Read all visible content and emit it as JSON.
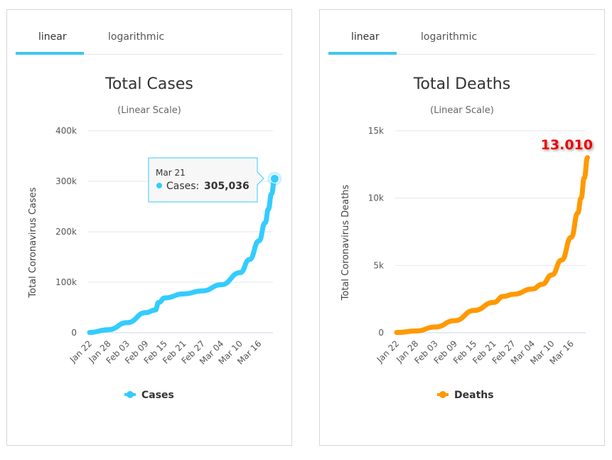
{
  "charts": [
    {
      "tabs": [
        {
          "label": "linear",
          "active": true
        },
        {
          "label": "logarithmic",
          "active": false
        }
      ],
      "chart_data": {
        "type": "line",
        "title": "Total Cases",
        "subtitle": "(Linear Scale)",
        "ylabel": "Total Coronavirus Cases",
        "ylim": [
          0,
          400000
        ],
        "yticks": [
          0,
          100000,
          200000,
          300000,
          400000
        ],
        "ytick_labels": [
          "0",
          "100k",
          "200k",
          "300k",
          "400k"
        ],
        "xticks": [
          "Jan 22",
          "Jan 28",
          "Feb 03",
          "Feb 09",
          "Feb 15",
          "Feb 21",
          "Feb 27",
          "Mar 04",
          "Mar 10",
          "Mar 16"
        ],
        "grid": true,
        "legend": "bottom",
        "color": "#33ccff",
        "series": [
          {
            "name": "Cases",
            "x": [
              "Jan 22",
              "Jan 28",
              "Feb 03",
              "Feb 09",
              "Feb 12",
              "Feb 13",
              "Feb 15",
              "Feb 21",
              "Feb 27",
              "Mar 04",
              "Mar 10",
              "Mar 13",
              "Mar 16",
              "Mar 18",
              "Mar 19",
              "Mar 20",
              "Mar 21"
            ],
            "y": [
              555,
              6000,
              20000,
              40000,
              45000,
              60000,
              69000,
              77000,
              83000,
              95000,
              119000,
              145000,
              182000,
              218000,
              245000,
              275000,
              305036
            ]
          }
        ],
        "tooltip": {
          "date": "Mar 21",
          "series": "Cases",
          "value": "305,036"
        }
      }
    },
    {
      "tabs": [
        {
          "label": "linear",
          "active": true
        },
        {
          "label": "logarithmic",
          "active": false
        }
      ],
      "chart_data": {
        "type": "line",
        "title": "Total Deaths",
        "subtitle": "(Linear Scale)",
        "ylabel": "Total Coronavirus Deaths",
        "ylim": [
          0,
          15000
        ],
        "yticks": [
          0,
          5000,
          10000,
          15000
        ],
        "ytick_labels": [
          "0",
          "5k",
          "10k",
          "15k"
        ],
        "xticks": [
          "Jan 22",
          "Jan 28",
          "Feb 03",
          "Feb 09",
          "Feb 15",
          "Feb 21",
          "Feb 27",
          "Mar 04",
          "Mar 10",
          "Mar 16"
        ],
        "grid": true,
        "legend": "bottom",
        "color": "#ff9900",
        "series": [
          {
            "name": "Deaths",
            "x": [
              "Jan 22",
              "Jan 28",
              "Feb 03",
              "Feb 09",
              "Feb 15",
              "Feb 21",
              "Feb 24",
              "Feb 27",
              "Mar 04",
              "Mar 07",
              "Mar 10",
              "Mar 13",
              "Mar 16",
              "Mar 18",
              "Mar 19",
              "Mar 20",
              "Mar 21"
            ],
            "y": [
              17,
              130,
              430,
              900,
              1660,
              2250,
              2700,
              2850,
              3250,
              3600,
              4300,
              5400,
              7100,
              8900,
              10000,
              11500,
              13010
            ]
          }
        ],
        "annotation": {
          "text": "13.010",
          "color": "#ee0000"
        }
      }
    }
  ]
}
